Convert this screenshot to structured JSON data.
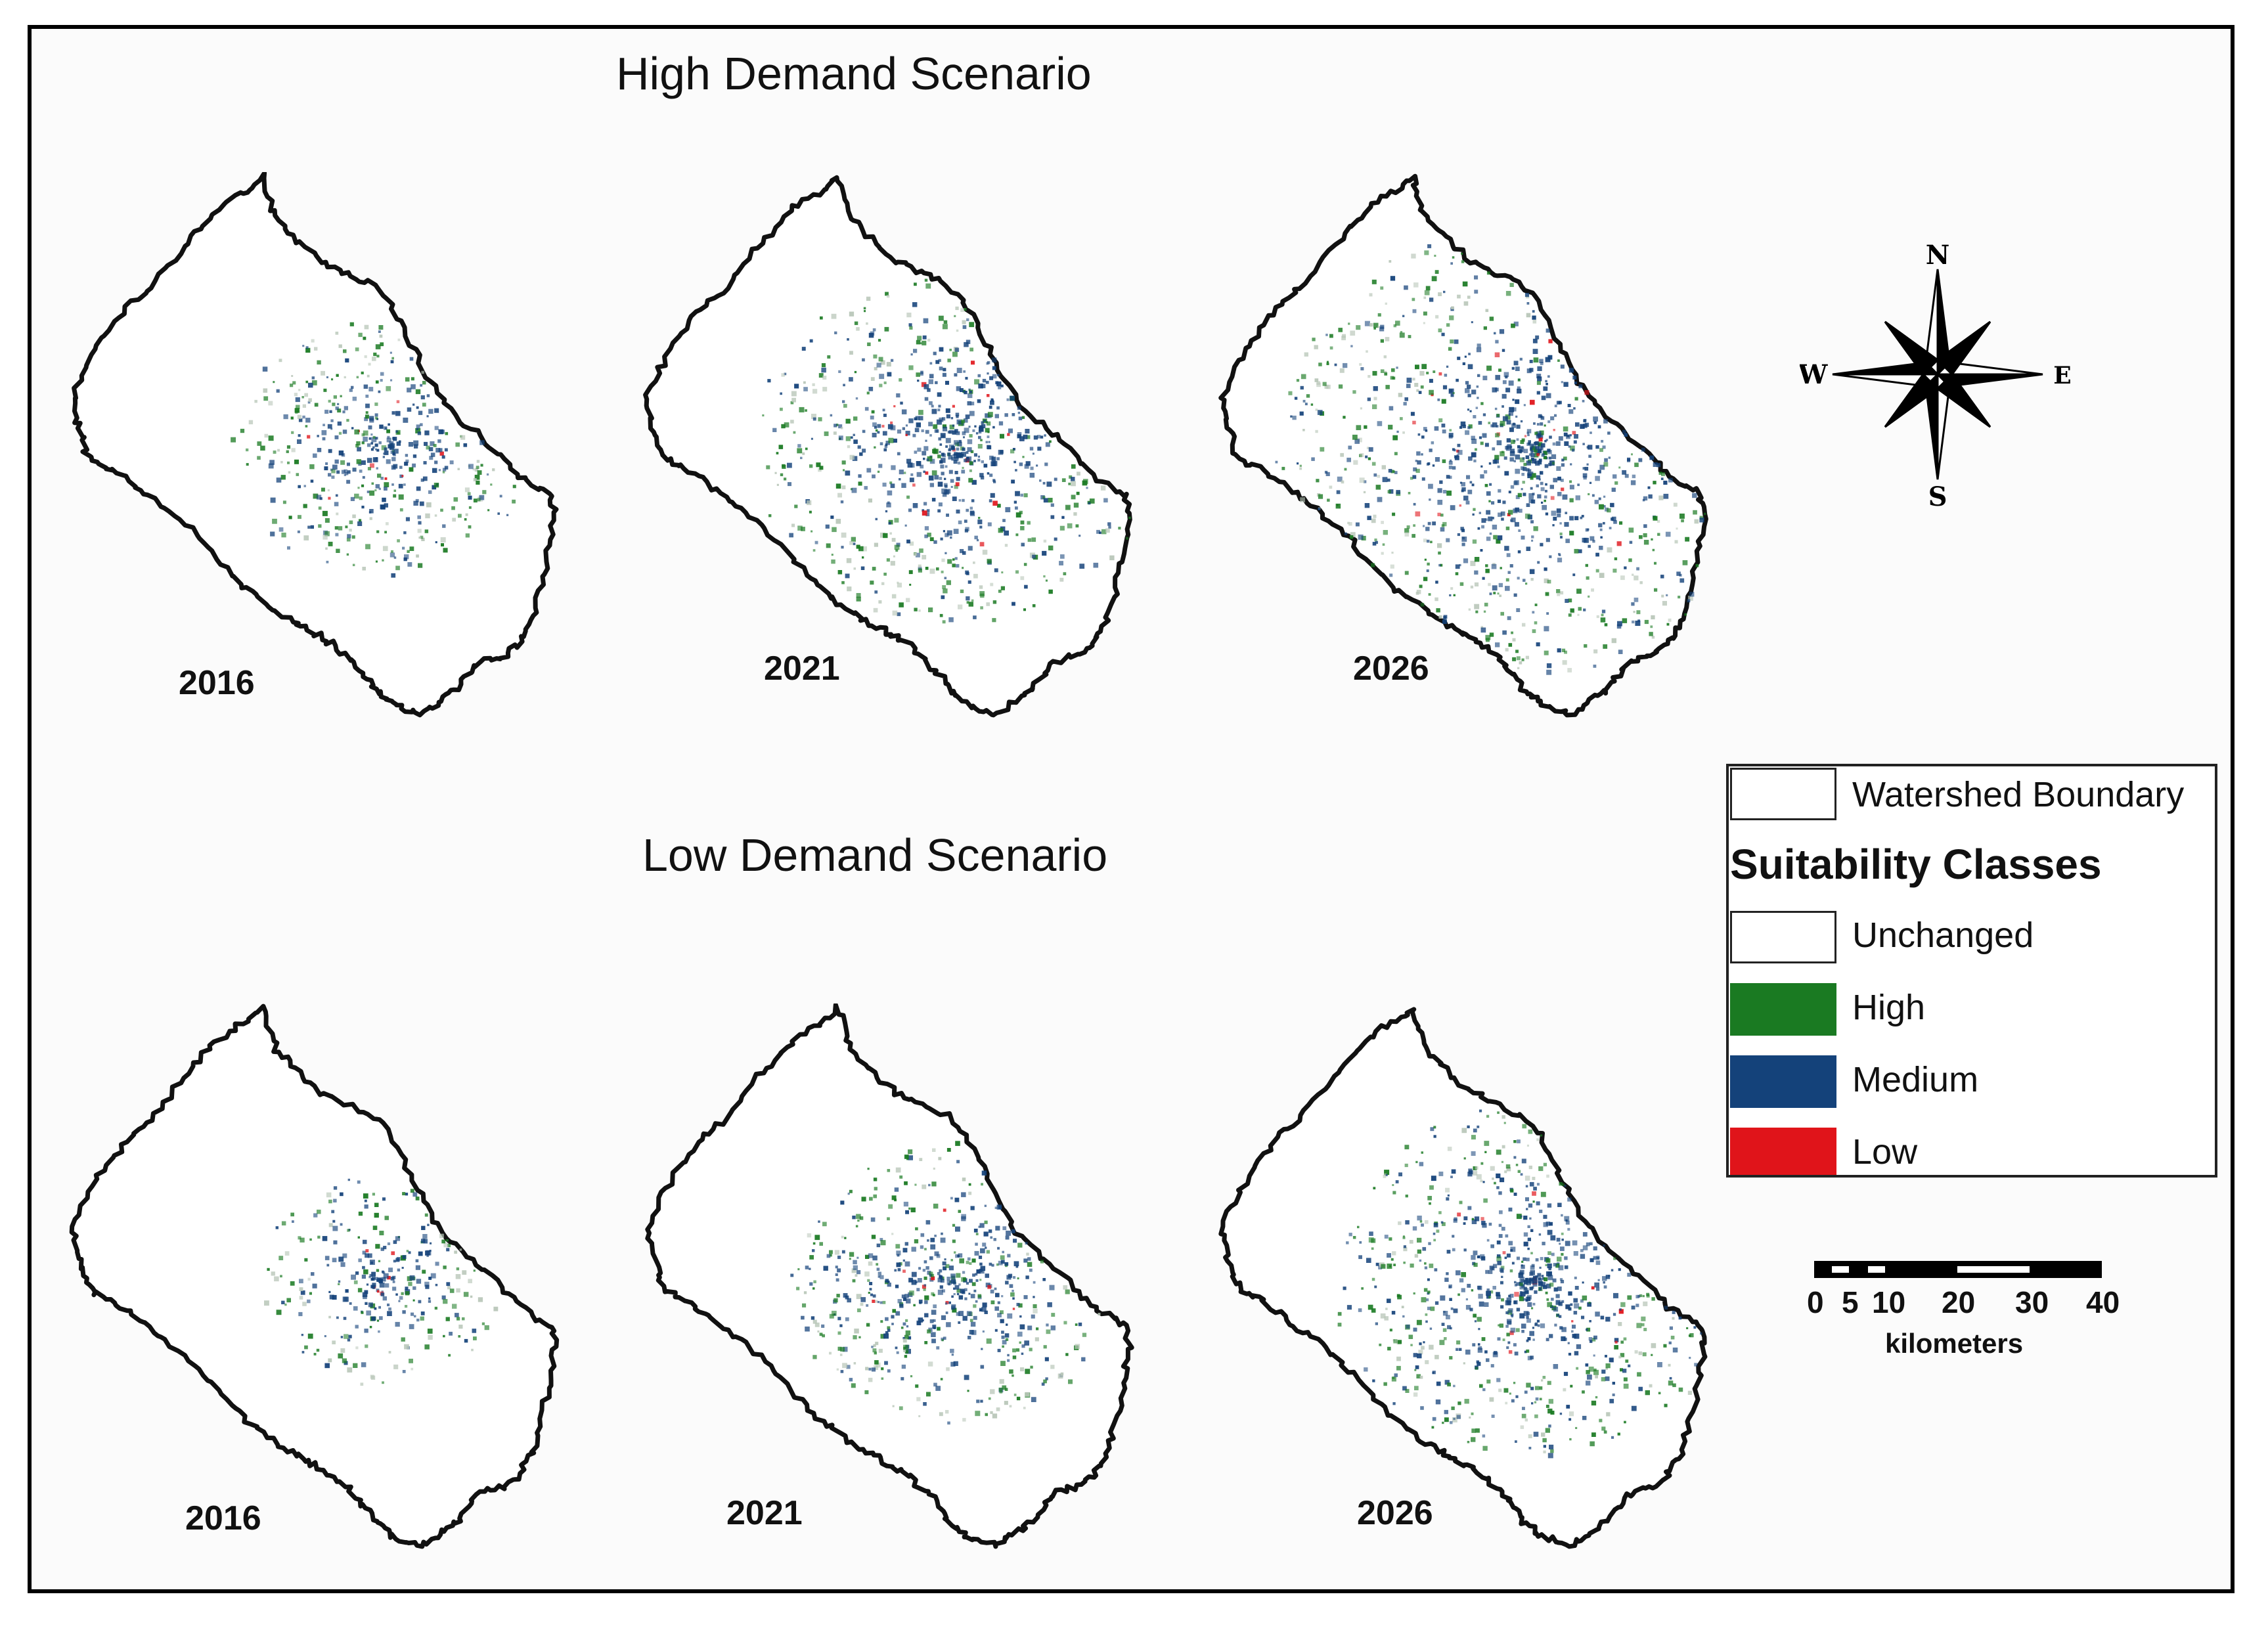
{
  "titles": {
    "high": "High Demand Scenario",
    "low": "Low Demand Scenario"
  },
  "panels": [
    {
      "scenario": "high",
      "year": "2016",
      "spread": 0.3
    },
    {
      "scenario": "high",
      "year": "2021",
      "spread": 0.55
    },
    {
      "scenario": "high",
      "year": "2026",
      "spread": 0.8
    },
    {
      "scenario": "low",
      "year": "2016",
      "spread": 0.18
    },
    {
      "scenario": "low",
      "year": "2021",
      "spread": 0.38
    },
    {
      "scenario": "low",
      "year": "2026",
      "spread": 0.55
    }
  ],
  "compass": {
    "n": "N",
    "s": "S",
    "e": "E",
    "w": "W"
  },
  "legend": {
    "boundary_label": "Watershed Boundary",
    "heading": "Suitability Classes",
    "classes": [
      {
        "label": "Unchanged",
        "color": "#ffffff"
      },
      {
        "label": "High",
        "color": "#1a7a22"
      },
      {
        "label": "Medium",
        "color": "#14427a"
      },
      {
        "label": "Low",
        "color": "#e0141a"
      }
    ]
  },
  "scalebar": {
    "ticks": [
      "0",
      "5",
      "10",
      "20",
      "30",
      "40"
    ],
    "unit": "kilometers"
  }
}
